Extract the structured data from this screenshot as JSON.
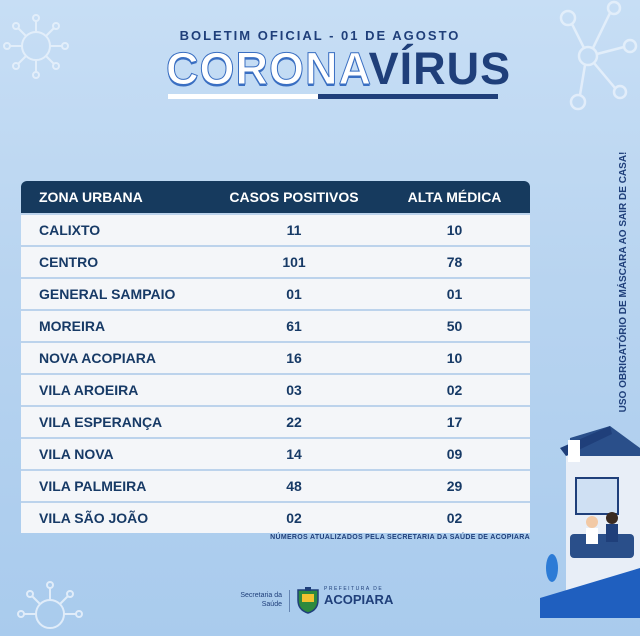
{
  "header": {
    "subtitle": "BOLETIM OFICIAL - 01 DE AGOSTO",
    "title_part1": "CORONA",
    "title_part2": "VÍRUS"
  },
  "table": {
    "headers": [
      "ZONA URBANA",
      "CASOS POSITIVOS",
      "ALTA MÉDICA"
    ],
    "rows": [
      [
        "CALIXTO",
        "11",
        "10"
      ],
      [
        "CENTRO",
        "101",
        "78"
      ],
      [
        "GENERAL SAMPAIO",
        "01",
        "01"
      ],
      [
        "MOREIRA",
        "61",
        "50"
      ],
      [
        "NOVA ACOPIARA",
        "16",
        "10"
      ],
      [
        "VILA AROEIRA",
        "03",
        "02"
      ],
      [
        "VILA ESPERANÇA",
        "22",
        "17"
      ],
      [
        "VILA NOVA",
        "14",
        "09"
      ],
      [
        "VILA PALMEIRA",
        "48",
        "29"
      ],
      [
        "VILA SÃO JOÃO",
        "02",
        "02"
      ]
    ]
  },
  "note": "NÚMEROS ATUALIZADOS PELA SECRETARIA DA SAÚDE DE ACOPIARA",
  "side_text": "USO OBRIGATÓRIO DE MÁSCARA AO SAIR DE CASA!",
  "footer": {
    "secretaria_line1": "Secretaria da",
    "secretaria_line2": "Saúde",
    "prefeitura_small": "PREFEITURA DE",
    "prefeitura_big": "ACOPIARA"
  },
  "colors": {
    "navy": "#1f3f7a",
    "header_bg": "#163a5e",
    "background": "#b8d4f0"
  },
  "icons": [
    "virus-icon",
    "network-molecule-icon",
    "house-illustration",
    "coat-of-arms-icon"
  ]
}
